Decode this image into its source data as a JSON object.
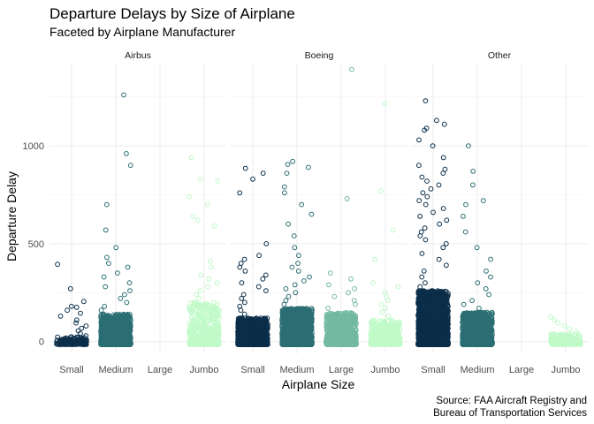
{
  "chart_data": {
    "type": "scatter",
    "title": "Departure Delays by Size of Airplane",
    "subtitle": "Faceted by Airplane Manufacturer",
    "xlabel": "Airplane Size",
    "ylabel": "Departure Delay",
    "caption_lines": [
      "Source: FAA Aircraft Registry and",
      "Bureau of Transportation Services"
    ],
    "categories": [
      "Small",
      "Medium",
      "Large",
      "Jumbo"
    ],
    "category_colors": [
      "#0b2e4a",
      "#2b6e74",
      "#72b9a0",
      "#c0fac8"
    ],
    "y_ticks": [
      0,
      500,
      1000
    ],
    "ylim": [
      -60,
      1420
    ],
    "grid": true,
    "panels": [
      {
        "name": "Airbus",
        "groups": [
          {
            "size": "Small",
            "n": 160,
            "bulk_max": 25,
            "tail": [
              30,
              42,
              55,
              68,
              80,
              95,
              110,
              130,
              145,
              160,
              175,
              180,
              205,
              270,
              395
            ]
          },
          {
            "size": "Medium",
            "n": 1200,
            "bulk_max": 140,
            "tail": [
              160,
              180,
              200,
              220,
              240,
              260,
              280,
              300,
              330,
              350,
              380,
              400,
              430,
              480,
              570,
              700,
              900,
              960,
              1260
            ]
          },
          {
            "size": "Large",
            "n": 0,
            "bulk_max": 0,
            "tail": []
          },
          {
            "size": "Jumbo",
            "n": 500,
            "bulk_max": 200,
            "tail": [
              220,
              240,
              260,
              280,
              300,
              320,
              340,
              380,
              410,
              590,
              620,
              640,
              700,
              740,
              820,
              830,
              940
            ]
          }
        ]
      },
      {
        "name": "Boeing",
        "groups": [
          {
            "size": "Small",
            "n": 1100,
            "bulk_max": 120,
            "tail": [
              140,
              160,
              180,
              200,
              220,
              240,
              260,
              280,
              300,
              320,
              340,
              360,
              380,
              400,
              420,
              440,
              500,
              760,
              830,
              860,
              885
            ]
          },
          {
            "size": "Medium",
            "n": 1600,
            "bulk_max": 170,
            "tail": [
              190,
              210,
              230,
              250,
              270,
              290,
              310,
              330,
              360,
              380,
              400,
              440,
              480,
              540,
              600,
              650,
              700,
              760,
              790,
              860,
              890,
              905,
              920
            ]
          },
          {
            "size": "Large",
            "n": 900,
            "bulk_max": 150,
            "tail": [
              170,
              190,
              210,
              230,
              250,
              270,
              290,
              320,
              350,
              730,
              1390
            ]
          },
          {
            "size": "Jumbo",
            "n": 500,
            "bulk_max": 110,
            "tail": [
              130,
              150,
              170,
              190,
              210,
              230,
              250,
              280,
              300,
              420,
              570,
              770,
              1215
            ]
          }
        ]
      },
      {
        "name": "Other",
        "groups": [
          {
            "size": "Small",
            "n": 2200,
            "bulk_max": 260,
            "tail": [
              280,
              300,
              330,
              360,
              390,
              420,
              450,
              480,
              500,
              520,
              540,
              560,
              580,
              600,
              620,
              640,
              660,
              680,
              700,
              720,
              740,
              760,
              780,
              800,
              820,
              840,
              860,
              880,
              900,
              940,
              1000,
              1030,
              1080,
              1090,
              1110,
              1130,
              1230
            ]
          },
          {
            "size": "Medium",
            "n": 1200,
            "bulk_max": 150,
            "tail": [
              170,
              190,
              210,
              240,
              270,
              300,
              330,
              360,
              420,
              480,
              560,
              640,
              700,
              720,
              800,
              870,
              1000
            ]
          },
          {
            "size": "Large",
            "n": 0,
            "bulk_max": 0,
            "tail": []
          },
          {
            "size": "Jumbo",
            "n": 180,
            "bulk_max": 40,
            "tail": [
              50,
              65,
              80,
              95,
              110,
              125
            ]
          }
        ]
      }
    ]
  }
}
